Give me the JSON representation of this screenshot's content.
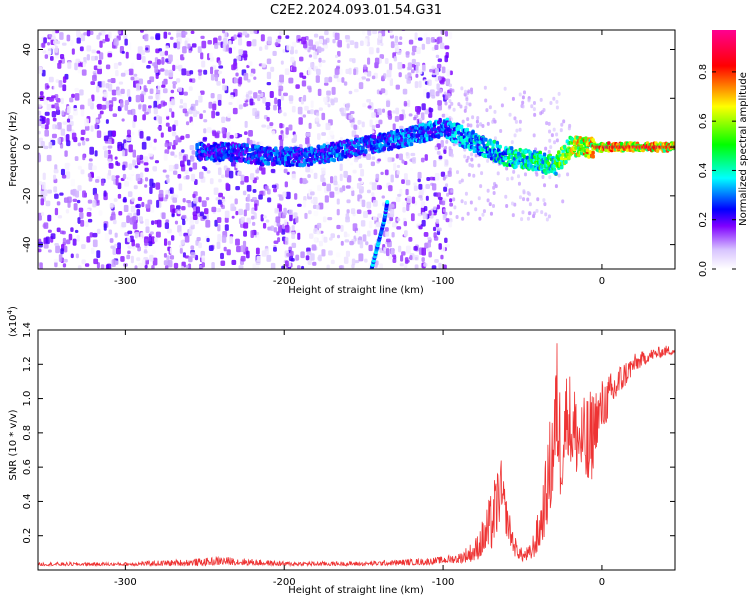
{
  "figure_title": "C2E2.2024.093.01.54.G31",
  "chart_data": [
    {
      "type": "heatmap",
      "title": "",
      "xlabel": "Height of straight line (km)",
      "ylabel": "Frequency (Hz)",
      "xlim": [
        -355,
        46
      ],
      "ylim": [
        -50,
        48
      ],
      "xticks": [
        -300,
        -200,
        -100,
        0
      ],
      "yticks": [
        -40,
        -20,
        0,
        20,
        40
      ],
      "colorbar": {
        "label": "Normalized spectral amplitude",
        "range": [
          0,
          0.97
        ],
        "ticks": [
          0.0,
          0.2,
          0.4,
          0.6,
          0.8
        ],
        "tick_labels": [
          "0.0",
          "0.2",
          "0.4",
          "0.6",
          "0.8"
        ],
        "colormap": [
          "#ffffff",
          "#d8c4ff",
          "#7f00ff",
          "#0000ff",
          "#00ffff",
          "#00ff00",
          "#ffff00",
          "#ff0000",
          "#ff00ff"
        ]
      },
      "features": [
        {
          "name": "noise_floor",
          "x_range": [
            -355,
            -95
          ],
          "y_range": [
            -50,
            48
          ],
          "amplitude": 0.1
        },
        {
          "name": "main_band",
          "points": [
            [
              -255,
              -2
            ],
            [
              -230,
              -2
            ],
            [
              -210,
              -4
            ],
            [
              -185,
              -4
            ],
            [
              -130,
              3
            ],
            [
              -100,
              8
            ],
            [
              -80,
              2
            ],
            [
              -60,
              -4
            ],
            [
              -40,
              -6
            ],
            [
              -30,
              -8
            ],
            [
              -20,
              0
            ],
            [
              0,
              0
            ],
            [
              20,
              0
            ],
            [
              46,
              0
            ]
          ],
          "amplitude_profile": [
            [
              -255,
              0.3
            ],
            [
              -100,
              0.35
            ],
            [
              -60,
              0.45
            ],
            [
              -30,
              0.55
            ],
            [
              -15,
              0.75
            ],
            [
              0,
              0.8
            ],
            [
              30,
              0.8
            ],
            [
              46,
              0.75
            ]
          ]
        },
        {
          "name": "diagonal_streak",
          "points": [
            [
              -145,
              -50
            ],
            [
              -137,
              -30
            ],
            [
              -135,
              -22
            ]
          ],
          "amplitude": 0.3
        }
      ]
    },
    {
      "type": "line",
      "title": "",
      "xlabel": "Height of straight line (km)",
      "ylabel": "SNR (10 * v/v)",
      "y_multiplier_label": "(x10",
      "y_multiplier_exponent": "4",
      "y_multiplier_close": ")",
      "xlim": [
        -355,
        46
      ],
      "ylim": [
        0,
        1.4
      ],
      "xticks": [
        -300,
        -200,
        -100,
        0
      ],
      "yticks": [
        0.2,
        0.4,
        0.6,
        0.8,
        1.0,
        1.2,
        1.4
      ],
      "series": [
        {
          "color": "#ee3333",
          "envelope": [
            [
              -355,
              0.025,
              0.045
            ],
            [
              -300,
              0.025,
              0.045
            ],
            [
              -250,
              0.025,
              0.07
            ],
            [
              -240,
              0.03,
              0.08
            ],
            [
              -200,
              0.025,
              0.05
            ],
            [
              -150,
              0.025,
              0.05
            ],
            [
              -110,
              0.03,
              0.07
            ],
            [
              -100,
              0.04,
              0.08
            ],
            [
              -90,
              0.04,
              0.1
            ],
            [
              -80,
              0.05,
              0.18
            ],
            [
              -75,
              0.08,
              0.3
            ],
            [
              -70,
              0.1,
              0.45
            ],
            [
              -66,
              0.2,
              0.6
            ],
            [
              -64,
              0.3,
              0.68
            ],
            [
              -60,
              0.2,
              0.42
            ],
            [
              -55,
              0.08,
              0.2
            ],
            [
              -50,
              0.05,
              0.12
            ],
            [
              -45,
              0.05,
              0.15
            ],
            [
              -40,
              0.1,
              0.35
            ],
            [
              -36,
              0.2,
              0.6
            ],
            [
              -32,
              0.35,
              0.95
            ],
            [
              -28,
              0.6,
              1.4
            ],
            [
              -26,
              0.4,
              1.05
            ],
            [
              -22,
              0.7,
              1.2
            ],
            [
              -18,
              0.55,
              1.12
            ],
            [
              -12,
              0.55,
              1.0
            ],
            [
              -8,
              0.4,
              1.05
            ],
            [
              -4,
              0.7,
              1.08
            ],
            [
              0,
              0.8,
              1.12
            ],
            [
              5,
              0.9,
              1.15
            ],
            [
              10,
              1.0,
              1.2
            ],
            [
              20,
              1.15,
              1.26
            ],
            [
              30,
              1.22,
              1.29
            ],
            [
              40,
              1.25,
              1.31
            ],
            [
              46,
              1.26,
              1.31
            ]
          ]
        }
      ]
    }
  ]
}
